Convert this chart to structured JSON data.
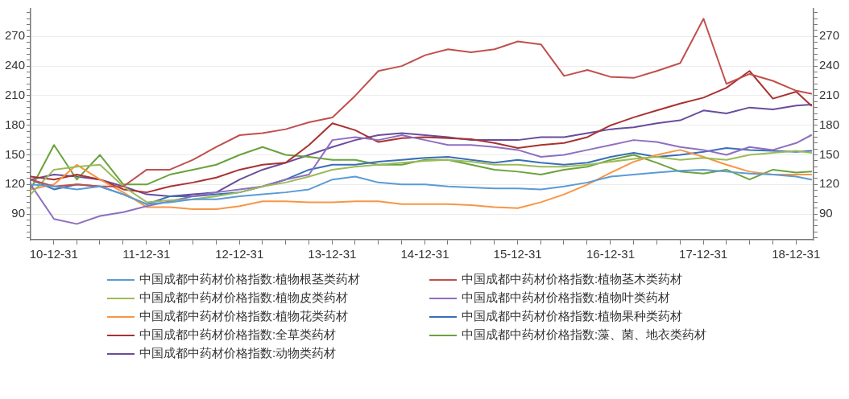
{
  "chart_data": {
    "type": "line",
    "x": [
      "2010-10",
      "2011-01",
      "2011-04",
      "2011-07",
      "2011-10",
      "2012-01",
      "2012-04",
      "2012-07",
      "2012-10",
      "2013-01",
      "2013-04",
      "2013-07",
      "2013-10",
      "2014-01",
      "2014-04",
      "2014-07",
      "2014-10",
      "2015-01",
      "2015-04",
      "2015-07",
      "2015-10",
      "2016-01",
      "2016-04",
      "2016-07",
      "2016-10",
      "2017-01",
      "2017-04",
      "2017-07",
      "2017-10",
      "2018-01",
      "2018-04",
      "2018-07",
      "2018-10",
      "2019-01",
      "2019-03"
    ],
    "series": [
      {
        "name": "中国成都中药材价格指数:植物根茎类药材",
        "color": "#5b9bd5",
        "values": [
          120,
          118,
          115,
          118,
          110,
          100,
          102,
          105,
          105,
          108,
          110,
          112,
          115,
          125,
          128,
          122,
          120,
          120,
          118,
          117,
          116,
          116,
          115,
          118,
          122,
          128,
          130,
          132,
          134,
          135,
          133,
          131,
          130,
          128,
          125
        ]
      },
      {
        "name": "中国成都中药材价格指数:植物茎木类药材",
        "color": "#c0504d",
        "values": [
          125,
          118,
          120,
          118,
          118,
          135,
          135,
          145,
          158,
          170,
          172,
          176,
          183,
          188,
          210,
          235,
          240,
          251,
          257,
          254,
          257,
          265,
          262,
          230,
          236,
          229,
          228,
          235,
          243,
          288,
          222,
          232,
          225,
          215,
          212
        ]
      },
      {
        "name": "中国成都中药材价格指数:植物皮类药材",
        "color": "#9bbb59",
        "values": [
          110,
          135,
          138,
          140,
          118,
          102,
          104,
          105,
          108,
          112,
          118,
          122,
          128,
          135,
          138,
          140,
          142,
          144,
          145,
          143,
          140,
          140,
          138,
          138,
          140,
          143,
          146,
          148,
          145,
          147,
          145,
          150,
          152,
          154,
          152
        ]
      },
      {
        "name": "中国成都中药材价格指数:植物叶类药材",
        "color": "#8e6fc0",
        "values": [
          120,
          85,
          80,
          88,
          92,
          98,
          103,
          108,
          112,
          115,
          118,
          125,
          130,
          165,
          168,
          165,
          170,
          165,
          160,
          160,
          158,
          155,
          148,
          150,
          155,
          160,
          165,
          163,
          158,
          155,
          150,
          158,
          155,
          162,
          170
        ]
      },
      {
        "name": "中国成都中药材价格指数:植物花类药材",
        "color": "#f79646",
        "values": [
          115,
          120,
          140,
          125,
          112,
          97,
          97,
          95,
          95,
          98,
          103,
          103,
          102,
          102,
          103,
          103,
          100,
          100,
          100,
          99,
          97,
          96,
          102,
          110,
          120,
          132,
          143,
          150,
          155,
          148,
          140,
          133,
          130,
          130,
          130
        ]
      },
      {
        "name": "中国成都中药材价格指数:植物果种类药材",
        "color": "#3a6fb7",
        "values": [
          125,
          115,
          120,
          118,
          110,
          100,
          108,
          108,
          110,
          112,
          118,
          125,
          135,
          140,
          140,
          143,
          145,
          147,
          148,
          145,
          142,
          145,
          142,
          140,
          142,
          148,
          152,
          148,
          150,
          153,
          157,
          155,
          154,
          153,
          154
        ]
      },
      {
        "name": "中国成都中药材价格指数:全草类药材",
        "color": "#a83232",
        "values": [
          128,
          125,
          130,
          125,
          115,
          112,
          118,
          122,
          127,
          135,
          140,
          142,
          160,
          182,
          175,
          163,
          167,
          168,
          167,
          166,
          162,
          157,
          160,
          162,
          168,
          180,
          188,
          195,
          202,
          208,
          218,
          235,
          207,
          214,
          200
        ]
      },
      {
        "name": "中国成都中药材价格指数:藻、菌、地衣类药材",
        "color": "#6aa23c",
        "values": [
          115,
          160,
          125,
          150,
          120,
          120,
          130,
          135,
          140,
          150,
          158,
          150,
          148,
          145,
          145,
          140,
          140,
          145,
          145,
          140,
          135,
          133,
          130,
          135,
          138,
          145,
          150,
          142,
          133,
          131,
          135,
          125,
          135,
          132,
          133
        ]
      },
      {
        "name": "中国成都中药材价格指数:动物类药材",
        "color": "#6a4c9c",
        "values": [
          125,
          130,
          128,
          125,
          118,
          110,
          108,
          110,
          112,
          125,
          135,
          142,
          150,
          158,
          165,
          170,
          172,
          170,
          168,
          165,
          165,
          165,
          168,
          168,
          172,
          176,
          178,
          182,
          185,
          195,
          192,
          198,
          196,
          200,
          201
        ]
      }
    ],
    "xlim": [
      "2010-10-01",
      "2019-03-10"
    ],
    "xticks": [
      {
        "value": "2010-12-31",
        "label": "10-12-31"
      },
      {
        "value": "2011-03-31",
        "label": null
      },
      {
        "value": "2011-06-30",
        "label": null
      },
      {
        "value": "2011-09-30",
        "label": null
      },
      {
        "value": "2011-12-31",
        "label": "11-12-31"
      },
      {
        "value": "2012-03-31",
        "label": null
      },
      {
        "value": "2012-06-30",
        "label": null
      },
      {
        "value": "2012-09-30",
        "label": null
      },
      {
        "value": "2012-12-31",
        "label": "12-12-31"
      },
      {
        "value": "2013-03-31",
        "label": null
      },
      {
        "value": "2013-06-30",
        "label": null
      },
      {
        "value": "2013-09-30",
        "label": null
      },
      {
        "value": "2013-12-31",
        "label": "13-12-31"
      },
      {
        "value": "2014-03-31",
        "label": null
      },
      {
        "value": "2014-06-30",
        "label": null
      },
      {
        "value": "2014-09-30",
        "label": null
      },
      {
        "value": "2014-12-31",
        "label": "14-12-31"
      },
      {
        "value": "2015-03-31",
        "label": null
      },
      {
        "value": "2015-06-30",
        "label": null
      },
      {
        "value": "2015-09-30",
        "label": null
      },
      {
        "value": "2015-12-31",
        "label": "15-12-31"
      },
      {
        "value": "2016-03-31",
        "label": null
      },
      {
        "value": "2016-06-30",
        "label": null
      },
      {
        "value": "2016-09-30",
        "label": null
      },
      {
        "value": "2016-12-31",
        "label": "16-12-31"
      },
      {
        "value": "2017-03-31",
        "label": null
      },
      {
        "value": "2017-06-30",
        "label": null
      },
      {
        "value": "2017-09-30",
        "label": null
      },
      {
        "value": "2017-12-31",
        "label": "17-12-31"
      },
      {
        "value": "2018-03-31",
        "label": null
      },
      {
        "value": "2018-06-30",
        "label": null
      },
      {
        "value": "2018-09-30",
        "label": null
      },
      {
        "value": "2018-12-31",
        "label": "18-12-31"
      }
    ],
    "ylim": [
      64,
      298
    ],
    "yticks": [
      {
        "value": 66,
        "label": null
      },
      {
        "value": 72,
        "label": null
      },
      {
        "value": 78,
        "label": null
      },
      {
        "value": 84,
        "label": null
      },
      90,
      {
        "value": 96,
        "label": null
      },
      {
        "value": 102,
        "label": null
      },
      {
        "value": 108,
        "label": null
      },
      {
        "value": 114,
        "label": null
      },
      120,
      {
        "value": 126,
        "label": null
      },
      {
        "value": 132,
        "label": null
      },
      {
        "value": 138,
        "label": null
      },
      {
        "value": 144,
        "label": null
      },
      150,
      {
        "value": 156,
        "label": null
      },
      {
        "value": 162,
        "label": null
      },
      {
        "value": 168,
        "label": null
      },
      {
        "value": 174,
        "label": null
      },
      180,
      {
        "value": 186,
        "label": null
      },
      {
        "value": 192,
        "label": null
      },
      {
        "value": 198,
        "label": null
      },
      {
        "value": 204,
        "label": null
      },
      210,
      {
        "value": 216,
        "label": null
      },
      {
        "value": 222,
        "label": null
      },
      {
        "value": 228,
        "label": null
      },
      {
        "value": 234,
        "label": null
      },
      240,
      {
        "value": 246,
        "label": null
      },
      {
        "value": 252,
        "label": null
      },
      {
        "value": 258,
        "label": null
      },
      {
        "value": 264,
        "label": null
      },
      270,
      {
        "value": 276,
        "label": null
      },
      {
        "value": 282,
        "label": null
      },
      {
        "value": 288,
        "label": null
      },
      {
        "value": 294,
        "label": null
      }
    ],
    "y2lim": [
      64,
      298
    ],
    "y2ticks": [
      {
        "value": 66,
        "label": null
      },
      {
        "value": 72,
        "label": null
      },
      {
        "value": 78,
        "label": null
      },
      {
        "value": 84,
        "label": null
      },
      90,
      {
        "value": 96,
        "label": null
      },
      {
        "value": 102,
        "label": null
      },
      {
        "value": 108,
        "label": null
      },
      {
        "value": 114,
        "label": null
      },
      120,
      {
        "value": 126,
        "label": null
      },
      {
        "value": 132,
        "label": null
      },
      {
        "value": 138,
        "label": null
      },
      {
        "value": 144,
        "label": null
      },
      150,
      {
        "value": 156,
        "label": null
      },
      {
        "value": 162,
        "label": null
      },
      {
        "value": 168,
        "label": null
      },
      {
        "value": 174,
        "label": null
      },
      180,
      {
        "value": 186,
        "label": null
      },
      {
        "value": 192,
        "label": null
      },
      {
        "value": 198,
        "label": null
      },
      {
        "value": 204,
        "label": null
      },
      210,
      {
        "value": 216,
        "label": null
      },
      {
        "value": 222,
        "label": null
      },
      {
        "value": 228,
        "label": null
      },
      {
        "value": 234,
        "label": null
      },
      240,
      {
        "value": 246,
        "label": null
      },
      {
        "value": 252,
        "label": null
      },
      {
        "value": 258,
        "label": null
      },
      {
        "value": 264,
        "label": null
      },
      270,
      {
        "value": 276,
        "label": null
      },
      {
        "value": 282,
        "label": null
      },
      {
        "value": 288,
        "label": null
      },
      {
        "value": 294,
        "label": null
      }
    ],
    "grid": "y",
    "legend": "bottom",
    "marker": "none",
    "line_style": "solid"
  }
}
